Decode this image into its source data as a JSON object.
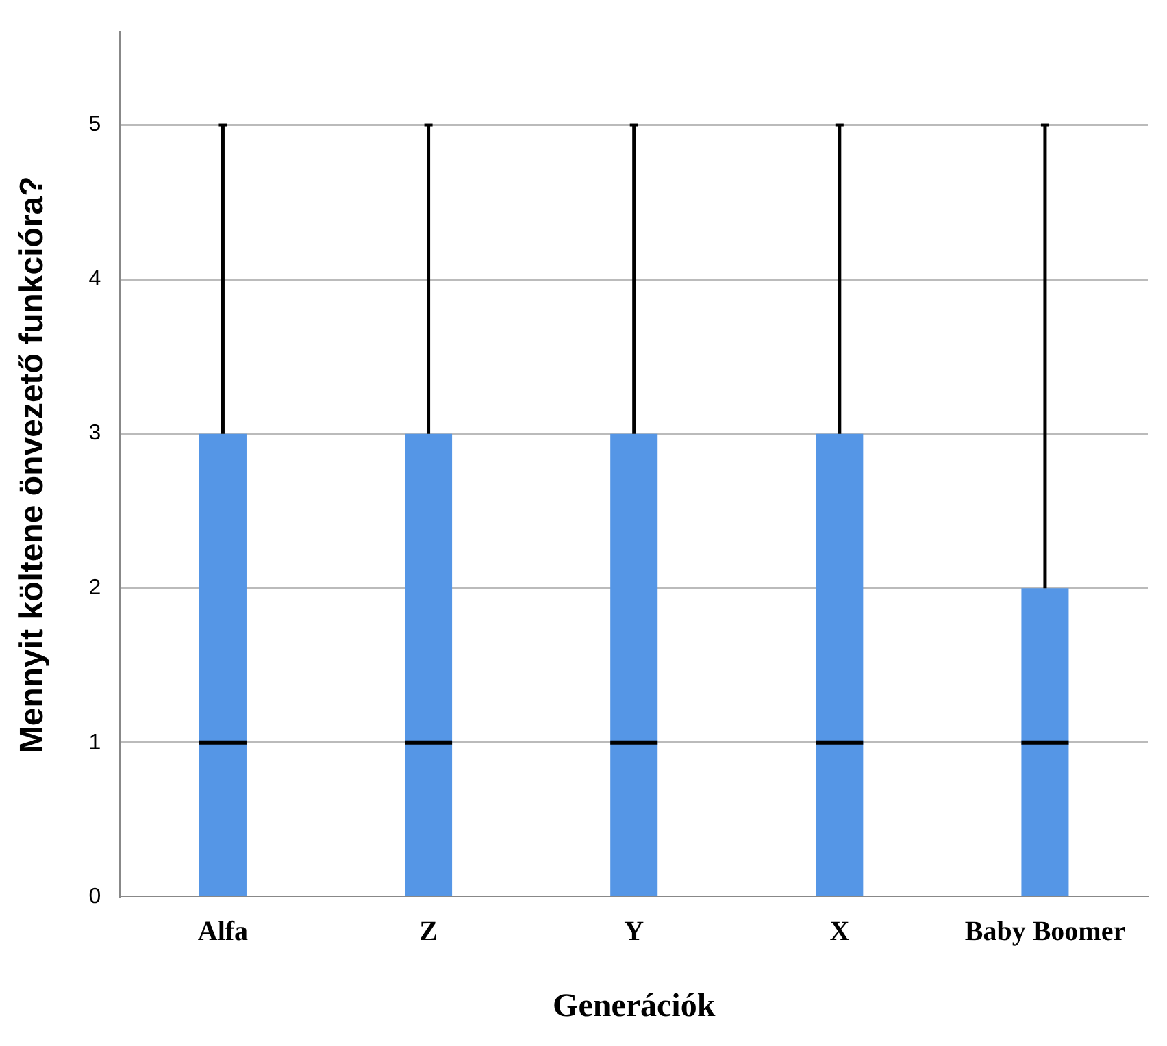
{
  "chart_data": {
    "type": "box",
    "xlabel": "Generációk",
    "ylabel": "Mennyit költene önvezető funkcióra?",
    "categories": [
      "Alfa",
      "Z",
      "Y",
      "X",
      "Baby Boomer"
    ],
    "boxes": [
      {
        "low": 0,
        "q1": 0,
        "median": 1,
        "q3": 3,
        "high": 5
      },
      {
        "low": 0,
        "q1": 0,
        "median": 1,
        "q3": 3,
        "high": 5
      },
      {
        "low": 0,
        "q1": 0,
        "median": 1,
        "q3": 3,
        "high": 5
      },
      {
        "low": 0,
        "q1": 0,
        "median": 1,
        "q3": 3,
        "high": 5
      },
      {
        "low": 0,
        "q1": 0,
        "median": 1,
        "q3": 2,
        "high": 5
      }
    ],
    "color": "#5596e6",
    "ylim": [
      0,
      5.6
    ],
    "yticks": [
      0,
      1,
      2,
      3,
      4,
      5
    ],
    "grid": "y",
    "legend": false
  }
}
